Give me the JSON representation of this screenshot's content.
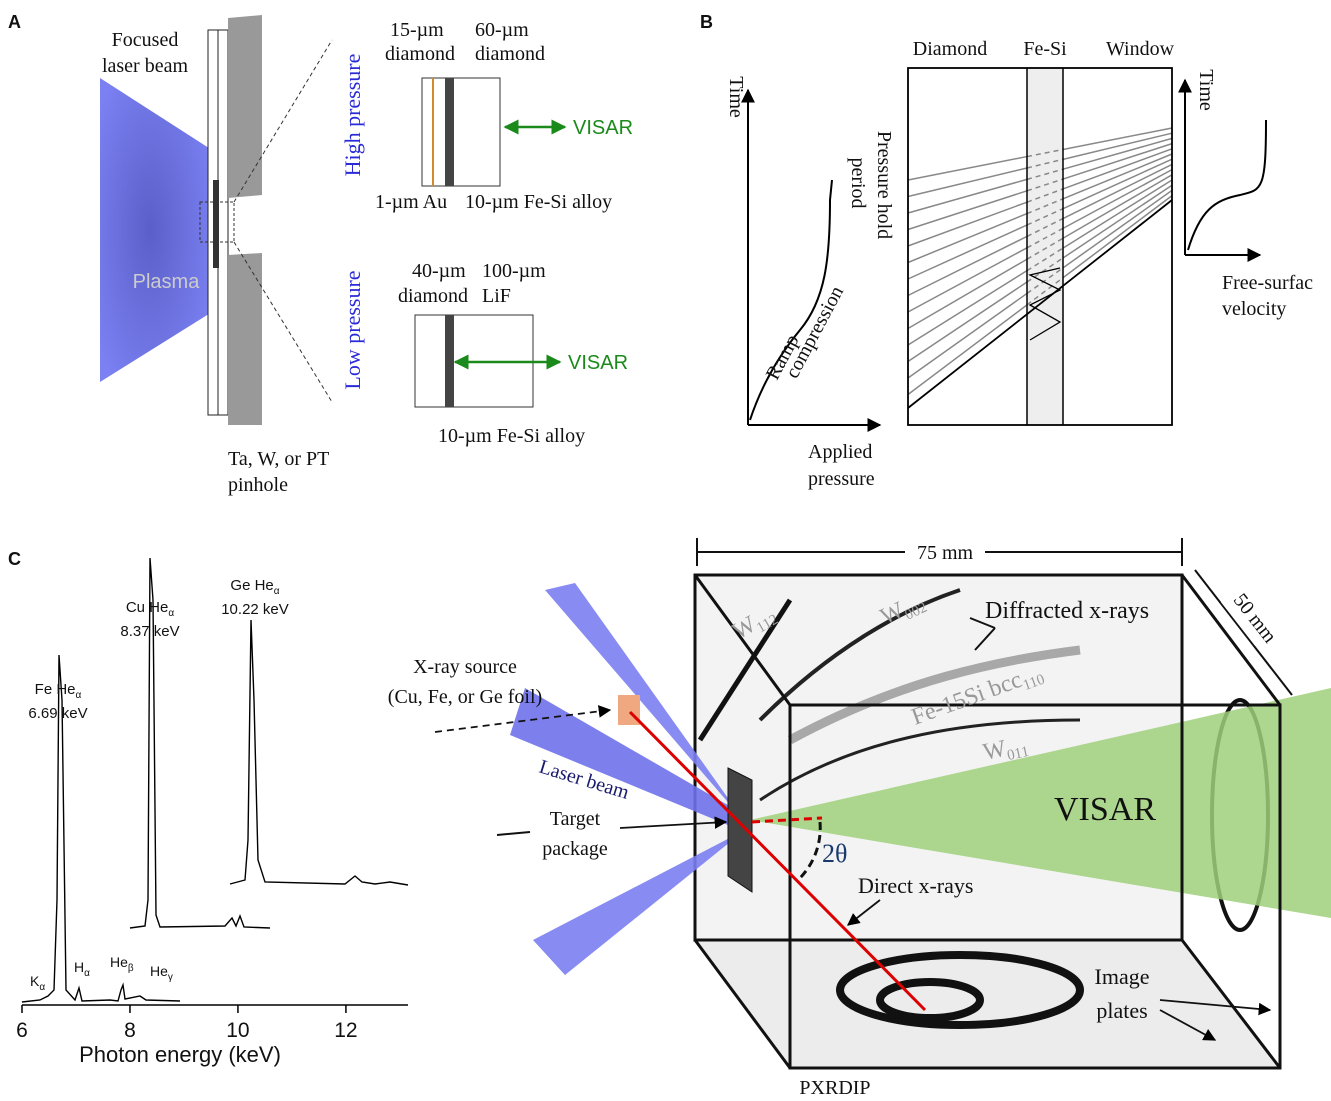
{
  "panel_a": {
    "label": "A",
    "laser": [
      "Focused",
      "laser beam"
    ],
    "plasma": "Plasma",
    "high_pressure": "High pressure",
    "low_pressure": "Low pressure",
    "high": {
      "diamond_thin": [
        "15-µm",
        "diamond"
      ],
      "diamond_thick": [
        "60-µm",
        "diamond"
      ],
      "visar": "VISAR",
      "au": "1-µm Au",
      "alloy": "10-µm Fe-Si alloy"
    },
    "low": {
      "diamond": [
        "40-µm",
        "diamond"
      ],
      "lif": [
        "100-µm",
        "LiF"
      ],
      "visar": "VISAR",
      "alloy": "10-µm Fe-Si alloy"
    },
    "pinhole": [
      "Ta, W, or PT",
      "pinhole"
    ]
  },
  "panel_b": {
    "label": "B",
    "time_left": "Time",
    "hold": [
      "Pressure hold",
      "period"
    ],
    "ramp": [
      "Ramp",
      "compression"
    ],
    "applied": [
      "Applied",
      "pressure"
    ],
    "layers": [
      "Diamond",
      "Fe-Si",
      "Window"
    ],
    "time_right": "Time",
    "velocity": [
      "Free-surfac",
      "velocity"
    ]
  },
  "panel_c": {
    "label": "C",
    "spectrum": {
      "xlim": [
        6,
        13.15
      ],
      "xticks": [
        6,
        8,
        10,
        12
      ],
      "xlabel": "Photon energy (keV)",
      "peaks": [
        {
          "name": {
            "text": "Fe He",
            "sub": "α"
          },
          "energy": "6.69 keV"
        },
        {
          "name": {
            "text": "Cu He",
            "sub": "α"
          },
          "energy": "8.37 keV"
        },
        {
          "name": {
            "text": "Ge He",
            "sub": "α"
          },
          "energy": "10.22 keV"
        }
      ],
      "lines": [
        {
          "text": "K",
          "sub": "α"
        },
        {
          "text": "H",
          "sub": "α"
        },
        {
          "text": "He",
          "sub": "β"
        },
        {
          "text": "He",
          "sub": "γ"
        }
      ]
    },
    "setup": {
      "source": [
        "X-ray source",
        "(Cu, Fe, or Ge foil)"
      ],
      "laser": "Laser beam",
      "target": [
        "Target",
        "package"
      ],
      "width": "75 mm",
      "depth": "50 mm",
      "w112": {
        "text": "W",
        "sub": "112"
      },
      "w002": {
        "text": "W",
        "sub": "002"
      },
      "diffracted": "Diffracted x-rays",
      "fesi": {
        "text": "Fe-15Si bcc",
        "sub": "110"
      },
      "w011": {
        "text": "W",
        "sub": "011"
      },
      "visar": "VISAR",
      "angle": "2θ",
      "direct": "Direct x-rays",
      "plates": [
        "Image",
        "plates"
      ],
      "name": "PXRDIP"
    }
  }
}
